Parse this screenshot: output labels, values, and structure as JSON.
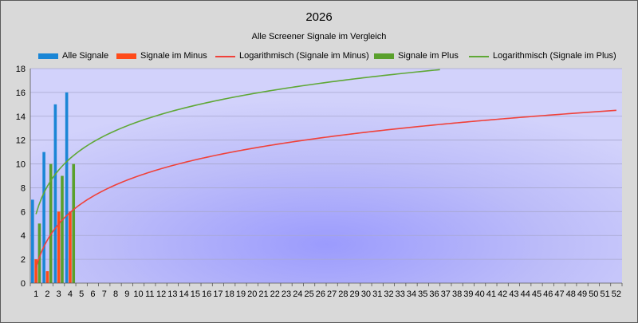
{
  "chart_data": {
    "type": "bar",
    "title": "2026",
    "subtitle": "Alle Screener Signale im Vergleich",
    "xlabel": "",
    "ylabel": "",
    "x_categories": [
      "1",
      "2",
      "3",
      "4",
      "5",
      "6",
      "7",
      "8",
      "9",
      "10",
      "11",
      "12",
      "13",
      "14",
      "15",
      "16",
      "17",
      "18",
      "19",
      "20",
      "21",
      "22",
      "23",
      "24",
      "25",
      "26",
      "27",
      "28",
      "29",
      "30",
      "31",
      "32",
      "33",
      "34",
      "35",
      "36",
      "37",
      "38",
      "39",
      "40",
      "41",
      "42",
      "43",
      "44",
      "45",
      "46",
      "47",
      "48",
      "49",
      "50",
      "51",
      "52"
    ],
    "ylim": [
      0,
      18
    ],
    "yticks": [
      0,
      2,
      4,
      6,
      8,
      10,
      12,
      14,
      16,
      18
    ],
    "grid": true,
    "legend_position": "top",
    "series": [
      {
        "name": "Alle Signale",
        "kind": "bar",
        "color": "#1a86d6",
        "values": [
          7,
          11,
          15,
          16
        ]
      },
      {
        "name": "Signale im Minus",
        "kind": "bar",
        "color": "#ff4b1a",
        "values": [
          2,
          1,
          6,
          6
        ]
      },
      {
        "name": "Logarithmisch (Signale im Minus)",
        "kind": "trend-log",
        "color": "#f0413a",
        "a": 1.3,
        "b": 3.34,
        "x_end": 52
      },
      {
        "name": "Signale im Plus",
        "kind": "bar",
        "color": "#5aa02c",
        "values": [
          5,
          10,
          9,
          10
        ]
      },
      {
        "name": "Logarithmisch (Signale im Plus)",
        "kind": "trend-log",
        "color": "#5fa836",
        "a": 5.79,
        "b": 3.37,
        "x_end": 36.5
      }
    ]
  }
}
